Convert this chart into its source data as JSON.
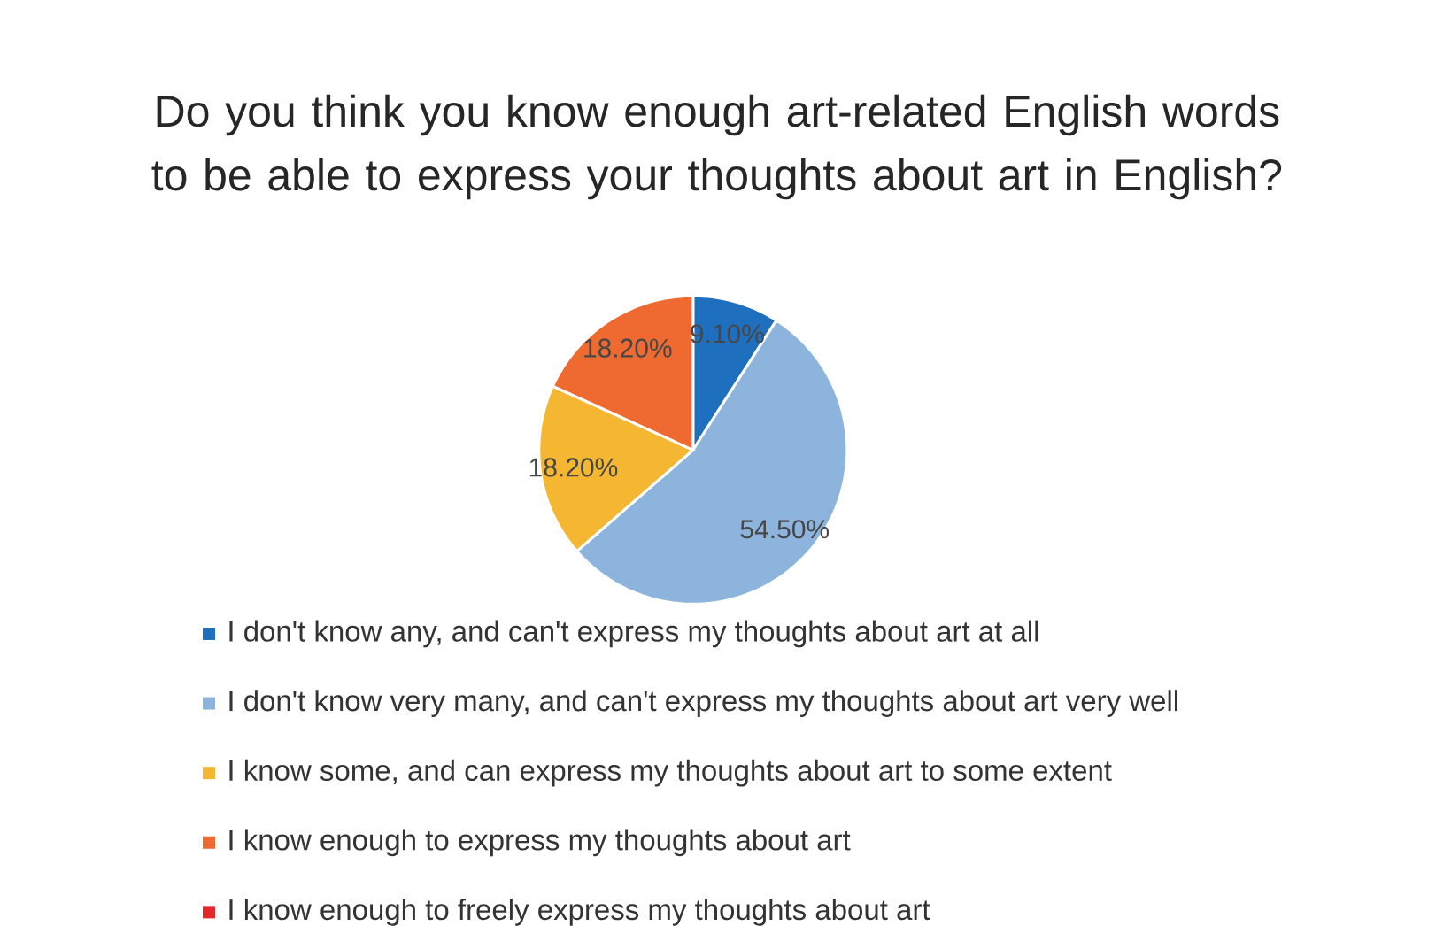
{
  "chart_data": {
    "type": "pie",
    "title": "Do you think you know enough art-related English words to be able to express your thoughts about art in English?",
    "categories": [
      "I don't know any, and can't express my thoughts about art at all",
      "I don't know very many, and can't express my thoughts about art very well",
      "I know some, and can express my thoughts about art to some extent",
      "I know enough to express my thoughts about art",
      "I know enough to freely express my thoughts about art"
    ],
    "values": [
      9.1,
      54.5,
      18.2,
      18.2,
      0
    ],
    "colors": [
      "#1f6fbf",
      "#8db4dc",
      "#f5b731",
      "#ee6a31",
      "#e5262b"
    ],
    "value_labels": [
      "9.10%",
      "54.50%",
      "18.20%",
      "18.20%",
      null
    ],
    "legend": "bottom"
  }
}
